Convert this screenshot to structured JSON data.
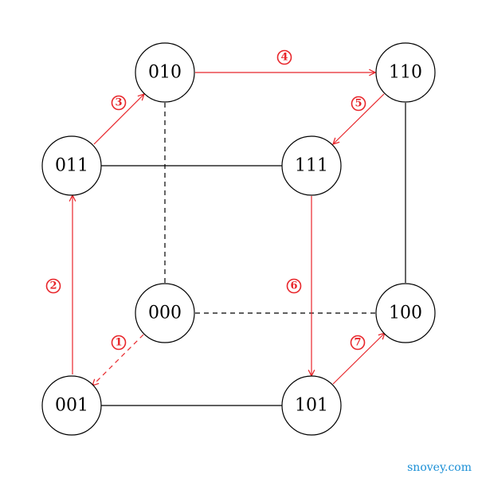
{
  "colors": {
    "path": "#e8262b",
    "edge": "#000000",
    "watermark": "#1a8fd6"
  },
  "nodes": {
    "n010": "010",
    "n110": "110",
    "n011": "011",
    "n111": "111",
    "n000": "000",
    "n100": "100",
    "n001": "001",
    "n101": "101"
  },
  "steps": {
    "s1": "1",
    "s2": "2",
    "s3": "3",
    "s4": "4",
    "s5": "5",
    "s6": "6",
    "s7": "7"
  },
  "watermark": "snovey.com"
}
